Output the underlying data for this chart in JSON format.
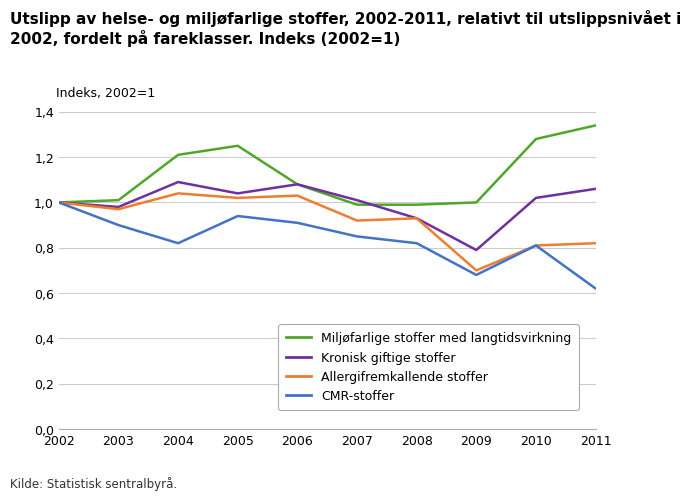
{
  "title_line1": "Utslipp av helse- og miljøfarlige stoffer, 2002-2011, relativt til utslippsnivået i",
  "title_line2": "2002, fordelt på fareklasser. Indeks (2002=1)",
  "ylabel_text": "Indeks, 2002=1",
  "source": "Kilde: Statistisk sentralbyrå.",
  "years": [
    2002,
    2003,
    2004,
    2005,
    2006,
    2007,
    2008,
    2009,
    2010,
    2011
  ],
  "series": {
    "Miljøfarlige stoffer med langtidsvirkning": {
      "values": [
        1.0,
        1.01,
        1.21,
        1.25,
        1.08,
        0.99,
        0.99,
        1.0,
        1.28,
        1.34
      ],
      "color": "#4ea72a"
    },
    "Kronisk giftige stoffer": {
      "values": [
        1.0,
        0.98,
        1.09,
        1.04,
        1.08,
        1.01,
        0.93,
        0.79,
        1.02,
        1.06
      ],
      "color": "#7030a0"
    },
    "Allergifremkallende stoffer": {
      "values": [
        1.0,
        0.97,
        1.04,
        1.02,
        1.03,
        0.92,
        0.93,
        0.7,
        0.81,
        0.82
      ],
      "color": "#ed7d31"
    },
    "CMR-stoffer": {
      "values": [
        1.0,
        0.9,
        0.82,
        0.94,
        0.91,
        0.85,
        0.82,
        0.68,
        0.81,
        0.62
      ],
      "color": "#4472c4"
    }
  },
  "ylim": [
    0.0,
    1.4
  ],
  "yticks": [
    0.0,
    0.2,
    0.4,
    0.6,
    0.8,
    1.0,
    1.2,
    1.4
  ],
  "ytick_labels": [
    "0,0",
    "0,2",
    "0,4",
    "0,6",
    "0,8",
    "1,0",
    "1,2",
    "1,4"
  ],
  "background_color": "#ffffff",
  "grid_color": "#cccccc",
  "line_width": 1.8,
  "title_fontsize": 11.0,
  "label_fontsize": 9.0,
  "tick_fontsize": 9.0,
  "legend_fontsize": 9.0,
  "source_fontsize": 8.5
}
